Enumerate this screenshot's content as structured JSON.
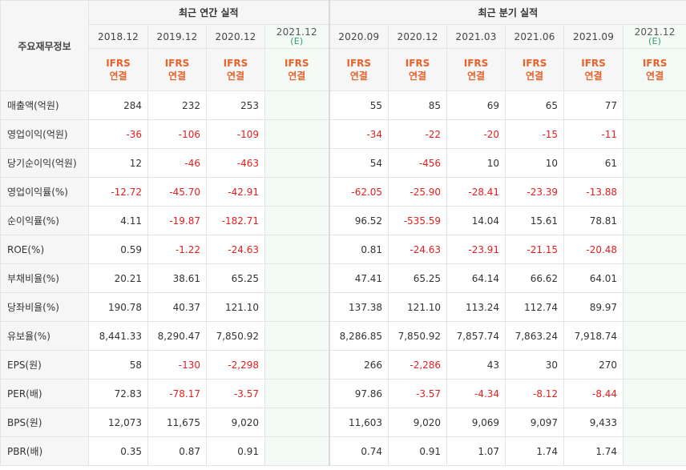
{
  "corner_label": "주요재무정보",
  "groups": [
    {
      "label": "최근 연간 실적"
    },
    {
      "label": "최근 분기 실적"
    }
  ],
  "periods": [
    {
      "label": "2018.12",
      "est": ""
    },
    {
      "label": "2019.12",
      "est": ""
    },
    {
      "label": "2020.12",
      "est": ""
    },
    {
      "label": "2021.12",
      "est": "(E)"
    },
    {
      "label": "2020.09",
      "est": ""
    },
    {
      "label": "2020.12",
      "est": ""
    },
    {
      "label": "2021.03",
      "est": ""
    },
    {
      "label": "2021.06",
      "est": ""
    },
    {
      "label": "2021.09",
      "est": ""
    },
    {
      "label": "2021.12",
      "est": "(E)"
    }
  ],
  "ifrs": {
    "line1": "IFRS",
    "line2": "연결"
  },
  "rows": [
    {
      "label": "매출액(억원)",
      "values": [
        "284",
        "232",
        "253",
        "",
        "55",
        "85",
        "69",
        "65",
        "77",
        ""
      ]
    },
    {
      "label": "영업이익(억원)",
      "values": [
        "-36",
        "-106",
        "-109",
        "",
        "-34",
        "-22",
        "-20",
        "-15",
        "-11",
        ""
      ]
    },
    {
      "label": "당기순이익(억원)",
      "values": [
        "12",
        "-46",
        "-463",
        "",
        "54",
        "-456",
        "10",
        "10",
        "61",
        ""
      ]
    },
    {
      "label": "영업이익률(%)",
      "values": [
        "-12.72",
        "-45.70",
        "-42.91",
        "",
        "-62.05",
        "-25.90",
        "-28.41",
        "-23.39",
        "-13.88",
        ""
      ]
    },
    {
      "label": "순이익률(%)",
      "values": [
        "4.11",
        "-19.87",
        "-182.71",
        "",
        "96.52",
        "-535.59",
        "14.04",
        "15.61",
        "78.81",
        ""
      ]
    },
    {
      "label": "ROE(%)",
      "values": [
        "0.59",
        "-1.22",
        "-24.63",
        "",
        "0.81",
        "-24.63",
        "-23.91",
        "-21.15",
        "-20.48",
        ""
      ]
    },
    {
      "label": "부채비율(%)",
      "values": [
        "20.21",
        "38.61",
        "65.25",
        "",
        "47.41",
        "65.25",
        "64.14",
        "66.62",
        "64.01",
        ""
      ]
    },
    {
      "label": "당좌비율(%)",
      "values": [
        "190.78",
        "40.37",
        "121.10",
        "",
        "137.38",
        "121.10",
        "113.24",
        "112.74",
        "89.97",
        ""
      ]
    },
    {
      "label": "유보율(%)",
      "values": [
        "8,441.33",
        "8,290.47",
        "7,850.92",
        "",
        "8,286.85",
        "7,850.92",
        "7,857.74",
        "7,863.24",
        "7,918.74",
        ""
      ]
    },
    {
      "label": "EPS(원)",
      "values": [
        "58",
        "-130",
        "-2,298",
        "",
        "266",
        "-2,286",
        "43",
        "30",
        "270",
        ""
      ]
    },
    {
      "label": "PER(배)",
      "values": [
        "72.83",
        "-78.17",
        "-3.57",
        "",
        "97.86",
        "-3.57",
        "-4.34",
        "-8.12",
        "-8.44",
        ""
      ]
    },
    {
      "label": "BPS(원)",
      "values": [
        "12,073",
        "11,675",
        "9,020",
        "",
        "11,603",
        "9,020",
        "9,069",
        "9,097",
        "9,433",
        ""
      ]
    },
    {
      "label": "PBR(배)",
      "values": [
        "0.35",
        "0.87",
        "0.91",
        "",
        "0.74",
        "0.91",
        "1.07",
        "1.74",
        "1.74",
        ""
      ]
    }
  ]
}
